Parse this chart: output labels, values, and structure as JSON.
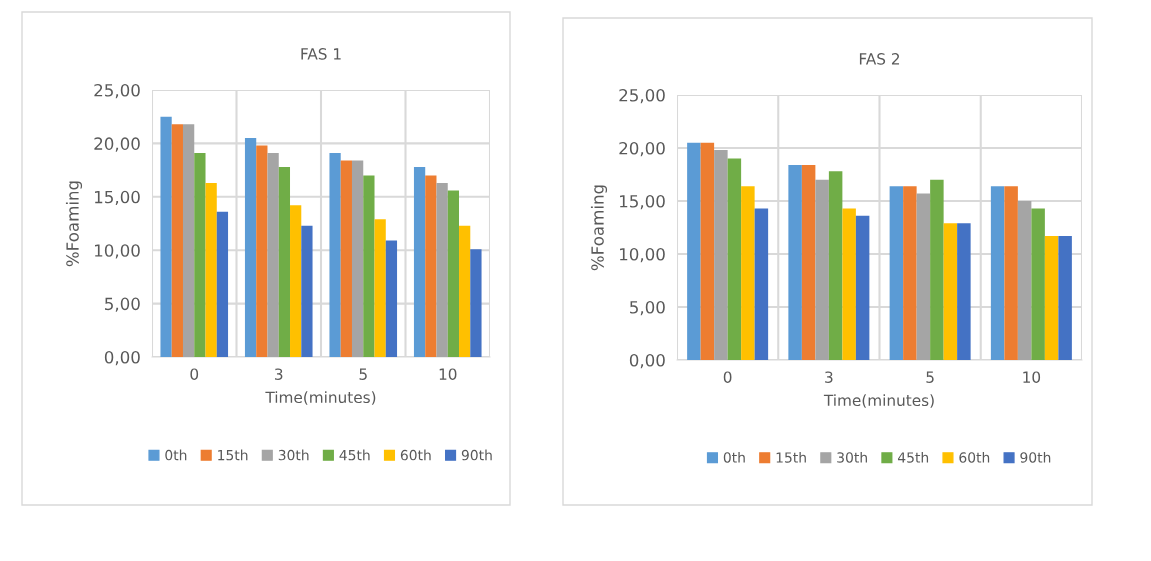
{
  "chart_data": [
    {
      "type": "bar",
      "title": "FAS 1",
      "xlabel": "Time(minutes)",
      "ylabel": "%Foaming",
      "categories": [
        "0",
        "3",
        "5",
        "10"
      ],
      "series": [
        {
          "name": "0th",
          "color": "#5b9bd5",
          "values": [
            22.5,
            20.5,
            19.1,
            17.8
          ]
        },
        {
          "name": "15th",
          "color": "#ed7d31",
          "values": [
            21.8,
            19.8,
            18.4,
            17.0
          ]
        },
        {
          "name": "30th",
          "color": "#a5a5a5",
          "values": [
            21.8,
            19.1,
            18.4,
            16.3
          ]
        },
        {
          "name": "45th",
          "color": "#70ad47",
          "values": [
            19.1,
            17.8,
            17.0,
            15.6
          ]
        },
        {
          "name": "60th",
          "color": "#ffc000",
          "values": [
            16.3,
            14.2,
            12.9,
            12.3
          ]
        },
        {
          "name": "90th",
          "color": "#4472c4",
          "values": [
            13.6,
            12.3,
            10.9,
            10.1
          ]
        }
      ],
      "ylim": [
        0,
        25
      ],
      "yticks": [
        {
          "value": 0,
          "label": "0,00"
        },
        {
          "value": 5,
          "label": "5,00"
        },
        {
          "value": 10,
          "label": "10,00"
        },
        {
          "value": 15,
          "label": "15,00"
        },
        {
          "value": 20,
          "label": "20,00"
        },
        {
          "value": 25,
          "label": "25,00"
        }
      ],
      "grid": true,
      "legend": "bottom"
    },
    {
      "type": "bar",
      "title": "FAS 2",
      "xlabel": "Time(minutes)",
      "ylabel": "%Foaming",
      "categories": [
        "0",
        "3",
        "5",
        "10"
      ],
      "series": [
        {
          "name": "0th",
          "color": "#5b9bd5",
          "values": [
            20.5,
            18.4,
            16.4,
            16.4
          ]
        },
        {
          "name": "15th",
          "color": "#ed7d31",
          "values": [
            20.5,
            18.4,
            16.4,
            16.4
          ]
        },
        {
          "name": "30th",
          "color": "#a5a5a5",
          "values": [
            19.8,
            17.0,
            15.7,
            15.0
          ]
        },
        {
          "name": "45th",
          "color": "#70ad47",
          "values": [
            19.0,
            17.8,
            17.0,
            14.3
          ]
        },
        {
          "name": "60th",
          "color": "#ffc000",
          "values": [
            16.4,
            14.3,
            12.9,
            11.7
          ]
        },
        {
          "name": "90th",
          "color": "#4472c4",
          "values": [
            14.3,
            13.6,
            12.9,
            11.7
          ]
        }
      ],
      "ylim": [
        0,
        25
      ],
      "yticks": [
        {
          "value": 0,
          "label": "0,00"
        },
        {
          "value": 5,
          "label": "5,00"
        },
        {
          "value": 10,
          "label": "10,00"
        },
        {
          "value": 15,
          "label": "15,00"
        },
        {
          "value": 20,
          "label": "20,00"
        },
        {
          "value": 25,
          "label": "25,00"
        }
      ],
      "grid": true,
      "legend": "bottom"
    }
  ]
}
